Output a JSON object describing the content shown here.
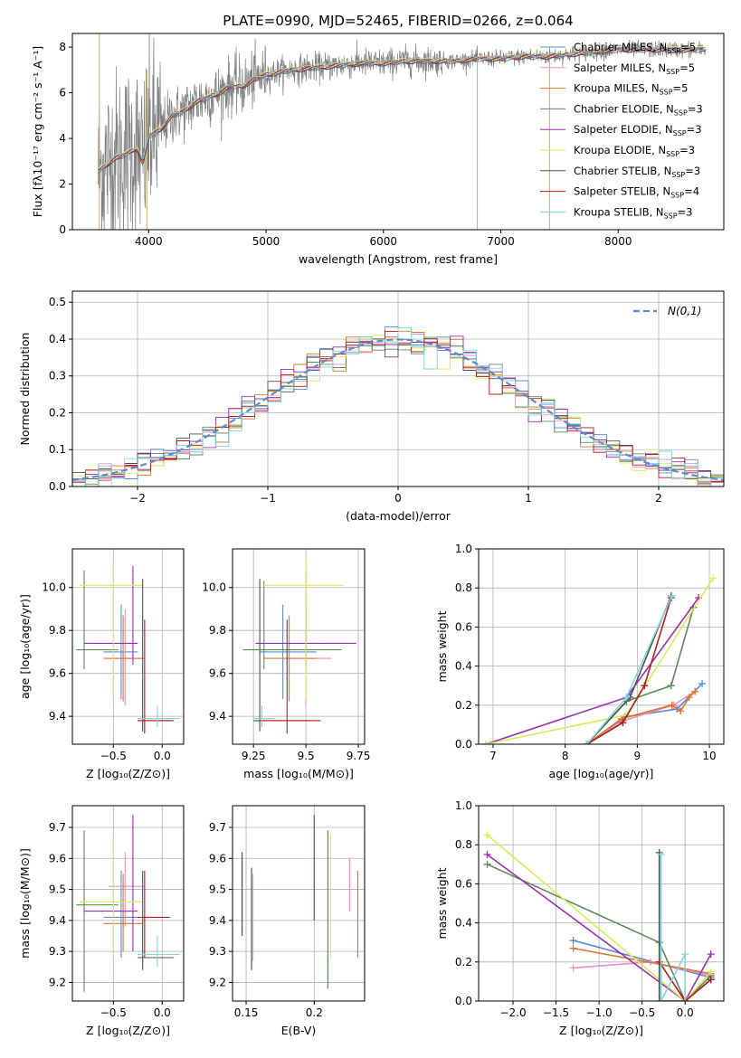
{
  "title": "PLATE=0990, MJD=52465, FIBERID=0266, z=0.064",
  "colors": {
    "data": "#808080",
    "chabrier_miles": "#5b8bd8",
    "salpeter_miles": "#e891c4",
    "kroupa_miles": "#d9772f",
    "chabrier_elodie": "#5c8a5c",
    "salpeter_elodie": "#9b2fb5",
    "kroupa_elodie": "#d6ec5a",
    "chabrier_stelib": "#505050",
    "salpeter_stelib": "#b51b1b",
    "kroupa_stelib": "#7fd6dc"
  },
  "chart_data": [
    {
      "id": "spectrum",
      "type": "line",
      "xlabel": "wavelength [Angstrom, rest frame]",
      "ylabel": "Flux [fλ10⁻¹⁷ erg cm⁻² s⁻¹ A⁻¹]",
      "xlim": [
        3350,
        8900
      ],
      "ylim": [
        0,
        8.6
      ],
      "xticks": [
        4000,
        5000,
        6000,
        7000,
        8000
      ],
      "yticks": [
        0,
        2,
        4,
        6,
        8
      ],
      "legend": "top-right",
      "legend_entries": [
        {
          "label": "Chabrier MILES, N",
          "sub": "SSP",
          "tail": "=5",
          "color": "chabrier_miles"
        },
        {
          "label": "Salpeter MILES, N",
          "sub": "SSP",
          "tail": "=5",
          "color": "salpeter_miles"
        },
        {
          "label": "Kroupa MILES, N",
          "sub": "SSP",
          "tail": "=5",
          "color": "kroupa_miles"
        },
        {
          "label": "Chabrier ELODIE, N",
          "sub": "SSP",
          "tail": "=3",
          "color": "chabrier_elodie"
        },
        {
          "label": "Salpeter ELODIE, N",
          "sub": "SSP",
          "tail": "=3",
          "color": "salpeter_elodie"
        },
        {
          "label": "Kroupa ELODIE, N",
          "sub": "SSP",
          "tail": "=3",
          "color": "kroupa_elodie"
        },
        {
          "label": "Chabrier STELIB, N",
          "sub": "SSP",
          "tail": "=3",
          "color": "chabrier_stelib"
        },
        {
          "label": "Salpeter STELIB, N",
          "sub": "SSP",
          "tail": "=4",
          "color": "salpeter_stelib"
        },
        {
          "label": "Kroupa STELIB, N",
          "sub": "SSP",
          "tail": "=3",
          "color": "kroupa_stelib"
        }
      ],
      "model_x": [
        3580,
        3700,
        3800,
        3900,
        3950,
        4000,
        4100,
        4200,
        4300,
        4400,
        4500,
        4600,
        4700,
        4800,
        4900,
        5000,
        5200,
        5400,
        5600,
        5800,
        6000,
        6200,
        6400,
        6600,
        6800,
        7000,
        7200,
        7400,
        7600,
        7800,
        8000,
        8200,
        8400,
        8600,
        8800
      ],
      "model_y": [
        2.6,
        3.1,
        3.3,
        3.6,
        2.9,
        4.1,
        4.4,
        5.0,
        5.2,
        5.6,
        5.8,
        6.0,
        6.3,
        6.3,
        6.6,
        6.8,
        7.0,
        7.1,
        7.2,
        7.3,
        7.3,
        7.4,
        7.4,
        7.4,
        7.5,
        7.5,
        7.6,
        7.6,
        7.7,
        7.8,
        7.9,
        7.9,
        7.9,
        7.9,
        7.9
      ],
      "data_range": [
        3570,
        8750
      ],
      "spikes": [
        {
          "x": 3580,
          "y": [
            0,
            8.6
          ]
        },
        {
          "x": 3985,
          "y": [
            0,
            7.0
          ]
        },
        {
          "x": 6800,
          "y": [
            0,
            7.4
          ]
        },
        {
          "x": 7415,
          "y": [
            0,
            7.6
          ]
        }
      ]
    },
    {
      "id": "residuals",
      "type": "area",
      "xlabel": "(data-model)/error",
      "ylabel": "Normed distribution",
      "xlim": [
        -2.5,
        2.5
      ],
      "ylim": [
        0,
        0.53
      ],
      "xticks": [
        -2,
        -1,
        0,
        1,
        2
      ],
      "yticks": [
        0.0,
        0.1,
        0.2,
        0.3,
        0.4,
        0.5
      ],
      "grid": true,
      "legend": "top-right",
      "legend_label": "N(0,1)",
      "bin_width": 0.1
    },
    {
      "id": "age_vs_Z",
      "type": "scatter",
      "xlabel": "Z [log₁₀(Z/Z⊙)]",
      "ylabel": "age  [log₁₀(age/yr)]",
      "xlim": [
        -0.92,
        0.22
      ],
      "ylim": [
        9.27,
        10.18
      ],
      "xticks": [
        -0.5,
        0.0
      ],
      "yticks": [
        9.4,
        9.6,
        9.8,
        10.0
      ],
      "grid": true,
      "crosses": [
        {
          "c": "chabrier_miles",
          "x": -0.42,
          "xe": [
            -0.6,
            -0.25
          ],
          "y": 9.7,
          "ye": [
            9.48,
            9.92
          ]
        },
        {
          "c": "salpeter_miles",
          "x": -0.38,
          "xe": [
            -0.55,
            -0.18
          ],
          "y": 9.67,
          "ye": [
            9.45,
            9.9
          ]
        },
        {
          "c": "kroupa_miles",
          "x": -0.4,
          "xe": [
            -0.6,
            -0.2
          ],
          "y": 9.67,
          "ye": [
            9.47,
            9.87
          ]
        },
        {
          "c": "chabrier_elodie",
          "x": -0.8,
          "xe": [
            -0.88,
            -0.45
          ],
          "y": 9.71,
          "ye": [
            9.62,
            10.08
          ]
        },
        {
          "c": "salpeter_elodie",
          "x": -0.3,
          "xe": [
            -0.8,
            -0.25
          ],
          "y": 9.74,
          "ye": [
            9.64,
            10.1
          ]
        },
        {
          "c": "kroupa_elodie",
          "x": -0.5,
          "xe": [
            -0.85,
            -0.2
          ],
          "y": 10.01,
          "ye": [
            9.48,
            10.13
          ]
        },
        {
          "c": "chabrier_stelib",
          "x": -0.2,
          "xe": [
            -0.25,
            0.12
          ],
          "y": 9.38,
          "ye": [
            9.33,
            10.04
          ]
        },
        {
          "c": "salpeter_stelib",
          "x": -0.18,
          "xe": [
            -0.25,
            0.08
          ],
          "y": 9.38,
          "ye": [
            9.32,
            9.85
          ]
        },
        {
          "c": "kroupa_stelib",
          "x": -0.05,
          "xe": [
            -0.25,
            0.18
          ],
          "y": 9.39,
          "ye": [
            9.35,
            9.45
          ]
        }
      ]
    },
    {
      "id": "age_vs_mass",
      "type": "scatter",
      "xlabel": "mass [log₁₀(M/M⊙)]",
      "ylabel": "",
      "xlim": [
        9.15,
        9.78
      ],
      "ylim": [
        9.27,
        10.18
      ],
      "xticks": [
        9.25,
        9.5,
        9.75
      ],
      "yticks": [
        9.4,
        9.6,
        9.8,
        10.0
      ],
      "grid": true,
      "crosses": [
        {
          "c": "chabrier_miles",
          "x": 9.39,
          "xe": [
            9.28,
            9.55
          ],
          "y": 9.7,
          "ye": [
            9.48,
            9.92
          ]
        },
        {
          "c": "salpeter_miles",
          "x": 9.5,
          "xe": [
            9.38,
            9.62
          ],
          "y": 9.67,
          "ye": [
            9.45,
            9.9
          ]
        },
        {
          "c": "kroupa_miles",
          "x": 9.42,
          "xe": [
            9.3,
            9.55
          ],
          "y": 9.67,
          "ye": [
            9.47,
            9.87
          ]
        },
        {
          "c": "chabrier_elodie",
          "x": 9.3,
          "xe": [
            9.2,
            9.67
          ],
          "y": 9.71,
          "ye": [
            9.62,
            10.03
          ]
        },
        {
          "c": "salpeter_elodie",
          "x": 9.5,
          "xe": [
            9.26,
            9.74
          ],
          "y": 9.74,
          "ye": [
            9.64,
            10.08
          ]
        },
        {
          "c": "kroupa_elodie",
          "x": 9.5,
          "xe": [
            9.3,
            9.68
          ],
          "y": 10.01,
          "ye": [
            9.48,
            10.13
          ]
        },
        {
          "c": "chabrier_stelib",
          "x": 9.28,
          "xe": [
            9.25,
            9.52
          ],
          "y": 9.38,
          "ye": [
            9.33,
            10.04
          ]
        },
        {
          "c": "salpeter_stelib",
          "x": 9.41,
          "xe": [
            9.28,
            9.57
          ],
          "y": 9.38,
          "ye": [
            9.32,
            9.85
          ]
        },
        {
          "c": "kroupa_stelib",
          "x": 9.29,
          "xe": [
            9.25,
            9.35
          ],
          "y": 9.39,
          "ye": [
            9.35,
            9.45
          ]
        }
      ]
    },
    {
      "id": "weight_vs_age",
      "type": "line",
      "xlabel": "age  [log₁₀(age/yr)]",
      "ylabel": "mass weight",
      "xlim": [
        6.8,
        10.2
      ],
      "ylim": [
        0,
        1.0
      ],
      "xticks": [
        7,
        8,
        9,
        10
      ],
      "yticks": [
        0.0,
        0.2,
        0.4,
        0.6,
        0.8,
        1.0
      ],
      "grid": true,
      "series": [
        {
          "c": "chabrier_miles",
          "x": [
            8.3,
            8.83,
            9.55,
            9.9
          ],
          "y": [
            0.0,
            0.14,
            0.18,
            0.31
          ]
        },
        {
          "c": "salpeter_miles",
          "x": [
            8.3,
            8.8,
            9.5,
            9.8
          ],
          "y": [
            0.0,
            0.12,
            0.2,
            0.27
          ]
        },
        {
          "c": "kroupa_miles",
          "x": [
            8.3,
            8.78,
            9.48,
            9.6,
            9.72,
            9.8
          ],
          "y": [
            0.0,
            0.13,
            0.2,
            0.17,
            0.24,
            0.27
          ]
        },
        {
          "c": "chabrier_elodie",
          "x": [
            8.3,
            8.85,
            9.47,
            9.78
          ],
          "y": [
            0.0,
            0.22,
            0.3,
            0.7
          ]
        },
        {
          "c": "salpeter_elodie",
          "x": [
            6.9,
            8.85,
            9.85
          ],
          "y": [
            0.0,
            0.24,
            0.75
          ]
        },
        {
          "c": "kroupa_elodie",
          "x": [
            6.9,
            8.85,
            10.05
          ],
          "y": [
            0.0,
            0.15,
            0.85
          ]
        },
        {
          "c": "chabrier_stelib",
          "x": [
            8.3,
            8.9,
            9.47
          ],
          "y": [
            0.0,
            0.24,
            0.76
          ]
        },
        {
          "c": "salpeter_stelib",
          "x": [
            8.3,
            8.8,
            9.1,
            9.47
          ],
          "y": [
            0.0,
            0.11,
            0.3,
            0.75
          ]
        },
        {
          "c": "kroupa_stelib",
          "x": [
            8.3,
            8.85,
            9.48
          ],
          "y": [
            0.0,
            0.24,
            0.76
          ]
        }
      ]
    },
    {
      "id": "mass_vs_Z",
      "type": "scatter",
      "xlabel": "Z [log₁₀(Z/Z⊙)]",
      "ylabel": "mass [log₁₀(M/M⊙)]",
      "xlim": [
        -0.92,
        0.22
      ],
      "ylim": [
        9.14,
        9.77
      ],
      "xticks": [
        -0.5,
        0.0
      ],
      "yticks": [
        9.2,
        9.3,
        9.4,
        9.5,
        9.6,
        9.7
      ],
      "grid": true,
      "crosses": [
        {
          "c": "chabrier_miles",
          "x": -0.42,
          "xe": [
            -0.6,
            -0.25
          ],
          "y": 9.41,
          "ye": [
            9.28,
            9.56
          ]
        },
        {
          "c": "salpeter_miles",
          "x": -0.38,
          "xe": [
            -0.55,
            -0.18
          ],
          "y": 9.51,
          "ye": [
            9.38,
            9.62
          ]
        },
        {
          "c": "kroupa_miles",
          "x": -0.4,
          "xe": [
            -0.6,
            -0.2
          ],
          "y": 9.39,
          "ye": [
            9.3,
            9.55
          ]
        },
        {
          "c": "chabrier_elodie",
          "x": -0.8,
          "xe": [
            -0.88,
            -0.45
          ],
          "y": 9.45,
          "ye": [
            9.17,
            9.69
          ]
        },
        {
          "c": "salpeter_elodie",
          "x": -0.3,
          "xe": [
            -0.8,
            -0.25
          ],
          "y": 9.43,
          "ye": [
            9.3,
            9.74
          ]
        },
        {
          "c": "kroupa_elodie",
          "x": -0.5,
          "xe": [
            -0.85,
            -0.2
          ],
          "y": 9.46,
          "ye": [
            9.28,
            9.68
          ]
        },
        {
          "c": "chabrier_stelib",
          "x": -0.2,
          "xe": [
            -0.25,
            0.12
          ],
          "y": 9.28,
          "ye": [
            9.24,
            9.56
          ]
        },
        {
          "c": "salpeter_stelib",
          "x": -0.18,
          "xe": [
            -0.25,
            0.08
          ],
          "y": 9.41,
          "ye": [
            9.28,
            9.56
          ]
        },
        {
          "c": "kroupa_stelib",
          "x": -0.05,
          "xe": [
            -0.25,
            0.18
          ],
          "y": 9.29,
          "ye": [
            9.25,
            9.35
          ]
        }
      ]
    },
    {
      "id": "mass_vs_EBV",
      "type": "scatter",
      "xlabel": "E(B-V)",
      "ylabel": "",
      "xlim": [
        0.14,
        0.237
      ],
      "ylim": [
        9.14,
        9.77
      ],
      "xticks": [
        0.15,
        0.2
      ],
      "yticks": [
        9.2,
        9.3,
        9.4,
        9.5,
        9.6,
        9.7
      ],
      "grid": true,
      "bars": [
        {
          "c": "salpeter_stelib",
          "x": 0.147,
          "y": [
            9.35,
            9.62
          ]
        },
        {
          "c": "chabrier_stelib",
          "x": 0.154,
          "y": [
            9.24,
            9.57
          ]
        },
        {
          "c": "kroupa_stelib",
          "x": 0.155,
          "y": [
            9.27,
            9.55
          ]
        },
        {
          "c": "salpeter_elodie",
          "x": 0.2,
          "y": [
            9.4,
            9.74
          ]
        },
        {
          "c": "chabrier_elodie",
          "x": 0.21,
          "y": [
            9.18,
            9.69
          ]
        },
        {
          "c": "kroupa_elodie",
          "x": 0.212,
          "y": [
            9.28,
            9.68
          ]
        },
        {
          "c": "salpeter_miles",
          "x": 0.226,
          "y": [
            9.43,
            9.6
          ]
        },
        {
          "c": "kroupa_miles",
          "x": 0.232,
          "y": [
            9.28,
            9.56
          ]
        }
      ]
    },
    {
      "id": "weight_vs_Z",
      "type": "line",
      "xlabel": "Z [log₁₀(Z/Z⊙)]",
      "ylabel": "mass weight",
      "xlim": [
        -2.4,
        0.45
      ],
      "ylim": [
        0,
        1.0
      ],
      "xticks": [
        -2.0,
        -1.5,
        -1.0,
        -0.5,
        0.0
      ],
      "yticks": [
        0.0,
        0.2,
        0.4,
        0.6,
        0.8,
        1.0
      ],
      "grid": true,
      "series": [
        {
          "c": "chabrier_miles",
          "x": [
            -1.3,
            0.3
          ],
          "y": [
            0.31,
            0.12
          ]
        },
        {
          "c": "salpeter_miles",
          "x": [
            -1.3,
            -0.4,
            0.3
          ],
          "y": [
            0.17,
            0.2,
            0.13
          ]
        },
        {
          "c": "kroupa_miles",
          "x": [
            -1.3,
            0.3
          ],
          "y": [
            0.27,
            0.14
          ]
        },
        {
          "c": "chabrier_elodie",
          "x": [
            -2.3,
            -0.3,
            0.0,
            0.3
          ],
          "y": [
            0.7,
            0.3,
            0.0,
            0.13
          ]
        },
        {
          "c": "salpeter_elodie",
          "x": [
            -2.3,
            0.0,
            0.3
          ],
          "y": [
            0.75,
            0.0,
            0.24
          ]
        },
        {
          "c": "kroupa_elodie",
          "x": [
            -2.3,
            0.0,
            0.3
          ],
          "y": [
            0.85,
            0.0,
            0.15
          ]
        },
        {
          "c": "chabrier_stelib",
          "x": [
            -0.3,
            -0.3,
            0.0,
            0.3
          ],
          "y": [
            0.76,
            0.0,
            0.0,
            0.11
          ]
        },
        {
          "c": "salpeter_stelib",
          "x": [
            -0.3,
            0.0,
            0.3
          ],
          "y": [
            0.2,
            0.0,
            0.11
          ]
        },
        {
          "c": "kroupa_stelib",
          "x": [
            -0.28,
            -0.28,
            0.0,
            0.0
          ],
          "y": [
            0.75,
            0.0,
            0.24,
            0.0
          ]
        }
      ]
    }
  ]
}
